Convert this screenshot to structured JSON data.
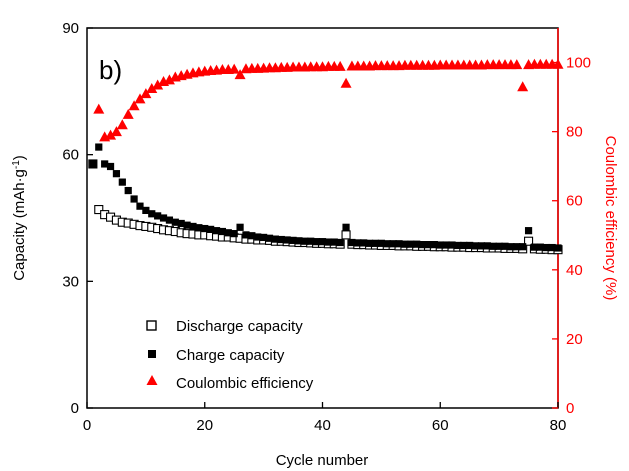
{
  "chart_data": {
    "type": "scatter",
    "panel_label": "b)",
    "xlabel": "Cycle number",
    "ylabel_left": "Capacity (mAh·g",
    "ylabel_left_sup": "-1",
    "ylabel_left_close": ")",
    "ylabel_right": "Coulombic efficiency (%)",
    "xlim": [
      0,
      80
    ],
    "ylim_left": [
      0,
      90
    ],
    "ylim_right": [
      0,
      110
    ],
    "xticks": [
      0,
      20,
      40,
      60,
      80
    ],
    "yticks_left": [
      0,
      30,
      60,
      90
    ],
    "yticks_right": [
      0,
      20,
      40,
      60,
      80,
      100
    ],
    "grid": false,
    "legend_position": "bottom-left",
    "right_axis_color": "#ff0000",
    "series": [
      {
        "name": "Discharge capacity",
        "axis": "left",
        "marker": "open-square",
        "color": "#000000",
        "x": [
          1,
          2,
          3,
          4,
          5,
          6,
          7,
          8,
          9,
          10,
          11,
          12,
          13,
          14,
          15,
          16,
          17,
          18,
          19,
          20,
          21,
          22,
          23,
          24,
          25,
          26,
          27,
          28,
          29,
          30,
          31,
          32,
          33,
          34,
          35,
          36,
          37,
          38,
          39,
          40,
          41,
          42,
          43,
          44,
          45,
          46,
          47,
          48,
          49,
          50,
          51,
          52,
          53,
          54,
          55,
          56,
          57,
          58,
          59,
          60,
          61,
          62,
          63,
          64,
          65,
          66,
          67,
          68,
          69,
          70,
          71,
          72,
          73,
          74,
          75,
          76,
          77,
          78,
          79,
          80
        ],
        "y": [
          57.8,
          47.0,
          45.8,
          45.2,
          44.5,
          44.0,
          43.8,
          43.5,
          43.2,
          43.0,
          42.8,
          42.5,
          42.2,
          42.0,
          41.8,
          41.5,
          41.3,
          41.2,
          41.0,
          41.0,
          40.8,
          40.7,
          40.5,
          40.5,
          40.3,
          40.2,
          40.0,
          40.0,
          39.8,
          39.8,
          39.7,
          39.5,
          39.5,
          39.4,
          39.3,
          39.2,
          39.2,
          39.1,
          39.0,
          39.0,
          38.9,
          38.9,
          38.8,
          41.0,
          38.8,
          38.7,
          38.7,
          38.6,
          38.6,
          38.5,
          38.5,
          38.5,
          38.4,
          38.4,
          38.4,
          38.3,
          38.3,
          38.3,
          38.2,
          38.2,
          38.2,
          38.1,
          38.1,
          38.1,
          38.0,
          38.0,
          38.0,
          37.9,
          37.9,
          37.9,
          37.8,
          37.8,
          37.8,
          37.7,
          39.5,
          37.7,
          37.6,
          37.6,
          37.5,
          37.5
        ]
      },
      {
        "name": "Charge capacity",
        "axis": "left",
        "marker": "filled-square",
        "color": "#000000",
        "x": [
          1,
          2,
          3,
          4,
          5,
          6,
          7,
          8,
          9,
          10,
          11,
          12,
          13,
          14,
          15,
          16,
          17,
          18,
          19,
          20,
          21,
          22,
          23,
          24,
          25,
          26,
          27,
          28,
          29,
          30,
          31,
          32,
          33,
          34,
          35,
          36,
          37,
          38,
          39,
          40,
          41,
          42,
          43,
          44,
          45,
          46,
          47,
          48,
          49,
          50,
          51,
          52,
          53,
          54,
          55,
          56,
          57,
          58,
          59,
          60,
          61,
          62,
          63,
          64,
          65,
          66,
          67,
          68,
          69,
          70,
          71,
          72,
          73,
          74,
          75,
          76,
          77,
          78,
          79,
          80
        ],
        "y": [
          57.8,
          61.8,
          57.8,
          57.2,
          55.5,
          53.5,
          51.5,
          49.5,
          47.8,
          46.8,
          46.0,
          45.5,
          45.0,
          44.5,
          44.0,
          43.7,
          43.3,
          43.0,
          42.7,
          42.5,
          42.3,
          42.0,
          41.8,
          41.5,
          41.3,
          42.8,
          41.0,
          40.8,
          40.5,
          40.4,
          40.2,
          40.0,
          39.9,
          39.8,
          39.7,
          39.6,
          39.5,
          39.5,
          39.4,
          39.4,
          39.3,
          39.3,
          39.2,
          42.8,
          39.2,
          39.1,
          39.1,
          39.0,
          39.0,
          39.0,
          38.9,
          38.9,
          38.9,
          38.8,
          38.8,
          38.8,
          38.7,
          38.7,
          38.7,
          38.6,
          38.6,
          38.6,
          38.5,
          38.5,
          38.5,
          38.4,
          38.4,
          38.4,
          38.3,
          38.3,
          38.3,
          38.2,
          38.2,
          38.2,
          42.0,
          38.1,
          38.1,
          38.0,
          38.0,
          37.9
        ]
      },
      {
        "name": "Coulombic efficiency",
        "axis": "right",
        "marker": "filled-triangle",
        "color": "#ff0000",
        "x": [
          2,
          3,
          4,
          5,
          6,
          7,
          8,
          9,
          10,
          11,
          12,
          13,
          14,
          15,
          16,
          17,
          18,
          19,
          20,
          21,
          22,
          23,
          24,
          25,
          26,
          27,
          28,
          29,
          30,
          31,
          32,
          33,
          34,
          35,
          36,
          37,
          38,
          39,
          40,
          41,
          42,
          43,
          44,
          45,
          46,
          47,
          48,
          49,
          50,
          51,
          52,
          53,
          54,
          55,
          56,
          57,
          58,
          59,
          60,
          61,
          62,
          63,
          64,
          65,
          66,
          67,
          68,
          69,
          70,
          71,
          72,
          73,
          74,
          75,
          76,
          77,
          78,
          79,
          80
        ],
        "y": [
          86.5,
          78.5,
          79.0,
          80.0,
          82.0,
          85.0,
          87.5,
          89.5,
          91.0,
          92.5,
          93.5,
          94.5,
          95.0,
          95.8,
          96.2,
          96.6,
          97.0,
          97.3,
          97.5,
          97.7,
          97.8,
          98.0,
          98.0,
          98.1,
          96.5,
          98.2,
          98.3,
          98.3,
          98.4,
          98.5,
          98.5,
          98.6,
          98.6,
          98.7,
          98.7,
          98.7,
          98.8,
          98.8,
          98.8,
          98.9,
          98.9,
          98.9,
          94.0,
          99.0,
          99.0,
          99.0,
          99.0,
          99.1,
          99.1,
          99.1,
          99.1,
          99.1,
          99.2,
          99.2,
          99.2,
          99.2,
          99.2,
          99.2,
          99.3,
          99.3,
          99.3,
          99.3,
          99.3,
          99.3,
          99.3,
          99.3,
          99.4,
          99.4,
          99.4,
          99.4,
          99.4,
          99.4,
          93.0,
          99.4,
          99.5,
          99.5,
          99.5,
          99.5,
          99.5
        ]
      }
    ]
  }
}
